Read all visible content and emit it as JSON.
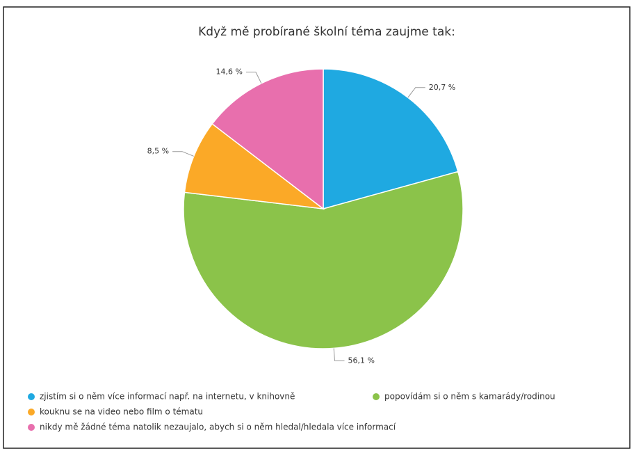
{
  "chart_data": {
    "type": "pie",
    "title": "Když mě probírané školní téma zaujme tak:",
    "categories": [
      "zjistím si o něm více informací např. na internetu, v knihovně",
      "popovídám si o něm s kamarády/rodinou",
      "kouknu se na video nebo film o tématu",
      "nikdy mě žádné téma natolik nezaujalo, abych si o něm hledal/hledala více informací"
    ],
    "values": [
      20.7,
      56.1,
      8.5,
      14.6
    ],
    "value_labels": [
      "20,7 %",
      "56,1 %",
      "8,5 %",
      "14,6 %"
    ],
    "colors": [
      "#1fa9e1",
      "#8bc34a",
      "#fba927",
      "#e86fad"
    ],
    "legend": "bottom"
  }
}
